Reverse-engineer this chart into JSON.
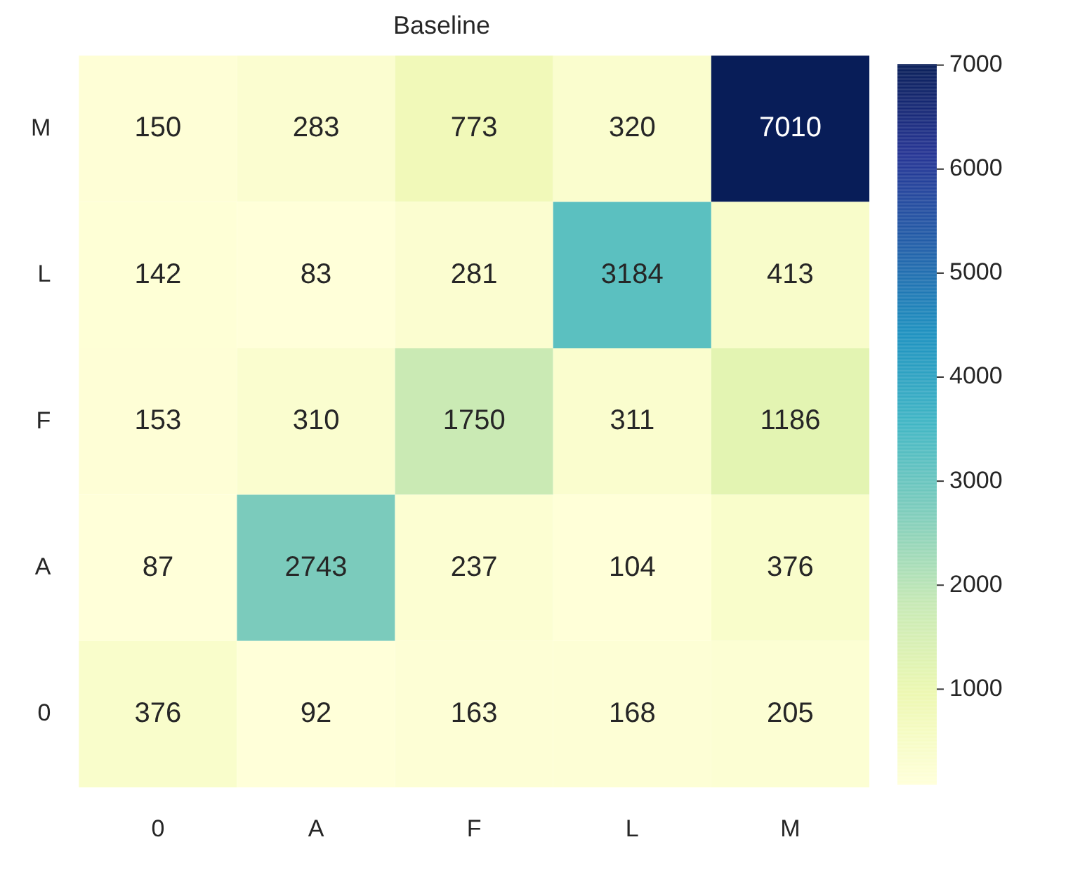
{
  "chart_data": {
    "type": "heatmap",
    "title": "Baseline",
    "categories": [
      "0",
      "A",
      "F",
      "L",
      "M"
    ],
    "y_categories": [
      "M",
      "L",
      "F",
      "A",
      "0"
    ],
    "cells": [
      [
        150,
        283,
        773,
        320,
        7010
      ],
      [
        142,
        83,
        281,
        3184,
        413
      ],
      [
        153,
        310,
        1750,
        311,
        1186
      ],
      [
        87,
        2743,
        237,
        104,
        376
      ],
      [
        376,
        92,
        163,
        168,
        205
      ]
    ],
    "clim": [
      83,
      7010
    ],
    "cticks": [
      1000,
      2000,
      3000,
      4000,
      5000,
      6000,
      7000
    ],
    "data_labels": true
  }
}
